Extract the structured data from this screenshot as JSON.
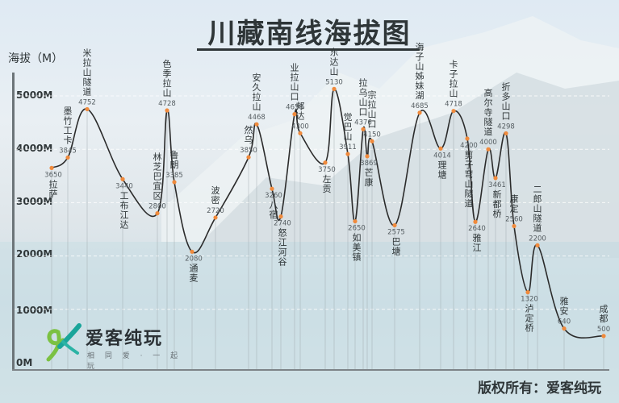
{
  "title": "川藏南线海拔图",
  "y_axis_label": "海拔（M）",
  "y_ticks": [
    "5000M",
    "4000M",
    "3000M",
    "2000M",
    "1000M",
    "0M"
  ],
  "copyright": "版权所有：爱客纯玩",
  "logo": {
    "name": "爱客纯玩",
    "slogan": "相 同 爱 · 一 起 玩"
  },
  "colors": {
    "line": "#2b2b2b",
    "marker": "#f08a3c",
    "text": "#2f3638",
    "grid": "#9aa3a8"
  },
  "chart_data": {
    "type": "line",
    "title": "川藏南线海拔图",
    "xlabel": "",
    "ylabel": "海拔（M）",
    "ylim": [
      0,
      5500
    ],
    "grid": true,
    "legend": null,
    "categories": [
      "拉萨",
      "墨竹工卡",
      "米拉山隧道",
      "工布江达",
      "林芝巴宜区",
      "色季拉山",
      "鲁朗",
      "通麦",
      "波密",
      "然乌",
      "安久拉山",
      "八宿",
      "怒江河谷",
      "业拉山口",
      "邦达",
      "左贡",
      "东达山",
      "觉巴山",
      "如美镇",
      "拉乌山口",
      "芒康",
      "宗拉山口",
      "巴塘",
      "海子山姊妹湖",
      "理塘",
      "卡子拉山",
      "剪子弯山隧道",
      "雅江",
      "高尔寺隧道",
      "新都桥",
      "折多山口",
      "康定",
      "泸定桥",
      "二郎山隧道",
      "雅安",
      "成都"
    ],
    "values": [
      3650,
      3845,
      4752,
      3440,
      2800,
      4728,
      3385,
      2080,
      2720,
      3850,
      4468,
      3260,
      2740,
      4658,
      4300,
      3750,
      5130,
      3911,
      2650,
      4376,
      3869,
      4150,
      2575,
      4685,
      4014,
      4718,
      4200,
      2640,
      4000,
      3461,
      4298,
      2560,
      1320,
      2200,
      640,
      500
    ]
  }
}
